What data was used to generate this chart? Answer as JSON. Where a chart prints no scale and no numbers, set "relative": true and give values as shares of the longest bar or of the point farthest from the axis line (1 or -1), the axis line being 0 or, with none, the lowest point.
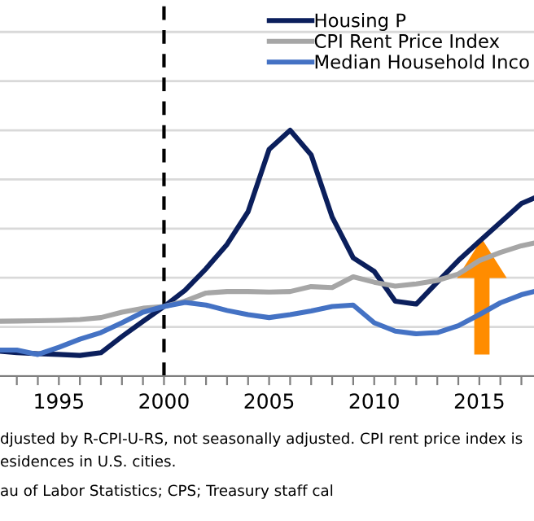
{
  "chart_data": {
    "type": "line",
    "relative": true,
    "grid": "y",
    "legend": "top right",
    "marker": "none",
    "line_style": "solid",
    "xlim": [
      1992.2,
      2017.6
    ],
    "xticks": [
      {
        "value": 1993,
        "label": null
      },
      {
        "value": 1994,
        "label": null
      },
      1995,
      {
        "value": 1996,
        "label": null
      },
      {
        "value": 1997,
        "label": null
      },
      {
        "value": 1998,
        "label": null
      },
      {
        "value": 1999,
        "label": null
      },
      2000,
      {
        "value": 2001,
        "label": null
      },
      {
        "value": 2002,
        "label": null
      },
      {
        "value": 2003,
        "label": null
      },
      {
        "value": 2004,
        "label": null
      },
      2005,
      {
        "value": 2006,
        "label": null
      },
      {
        "value": 2007,
        "label": null
      },
      {
        "value": 2008,
        "label": null
      },
      {
        "value": 2009,
        "label": null
      },
      2010,
      {
        "value": 2011,
        "label": null
      },
      {
        "value": 2012,
        "label": null
      },
      {
        "value": 2013,
        "label": null
      },
      {
        "value": 2014,
        "label": null
      },
      2015,
      {
        "value": 2016,
        "label": null
      },
      {
        "value": 2017,
        "label": null
      }
    ],
    "x": [
      1992.2,
      1993,
      1994,
      1995,
      1996,
      1997,
      1998,
      1999,
      2000,
      2001,
      2002,
      2003,
      2004,
      2005,
      2006,
      2007,
      2008,
      2009,
      2010,
      2011,
      2012,
      2013,
      2014,
      2015,
      2016,
      2017,
      2017.6
    ],
    "series": [
      {
        "name": "Housing P",
        "color": "#0b1f5c",
        "values": [
          0.101,
          0.095,
          0.091,
          0.088,
          0.084,
          0.095,
          0.161,
          0.223,
          0.283,
          0.349,
          0.437,
          0.536,
          0.669,
          0.922,
          1.0,
          0.9,
          0.647,
          0.481,
          0.426,
          0.305,
          0.293,
          0.382,
          0.47,
          0.548,
          0.625,
          0.702,
          0.724
        ]
      },
      {
        "name": "CPI Rent Price Index",
        "color": "#a6a6a6",
        "values": [
          0.223,
          0.224,
          0.225,
          0.227,
          0.23,
          0.238,
          0.26,
          0.276,
          0.283,
          0.305,
          0.338,
          0.344,
          0.344,
          0.342,
          0.344,
          0.364,
          0.36,
          0.404,
          0.382,
          0.366,
          0.375,
          0.389,
          0.415,
          0.47,
          0.503,
          0.53,
          0.541
        ]
      },
      {
        "name": "Median Household Inco",
        "color": "#4472c4",
        "values": [
          0.106,
          0.106,
          0.088,
          0.117,
          0.15,
          0.177,
          0.217,
          0.26,
          0.283,
          0.3,
          0.289,
          0.267,
          0.25,
          0.238,
          0.25,
          0.265,
          0.283,
          0.289,
          0.217,
          0.183,
          0.172,
          0.177,
          0.205,
          0.25,
          0.298,
          0.331,
          0.344
        ]
      }
    ],
    "ref_lines": [
      {
        "axis": "x",
        "value": 2000,
        "label": null,
        "color": "#000000",
        "line_style": "dashed"
      }
    ],
    "annotations": [
      "djusted by R-CPI-U-RS, not seasonally adjusted. CPI rent price index is",
      "esidences in U.S. cities.",
      "au of Labor Statistics; CPS; Treasury staff cal"
    ]
  }
}
